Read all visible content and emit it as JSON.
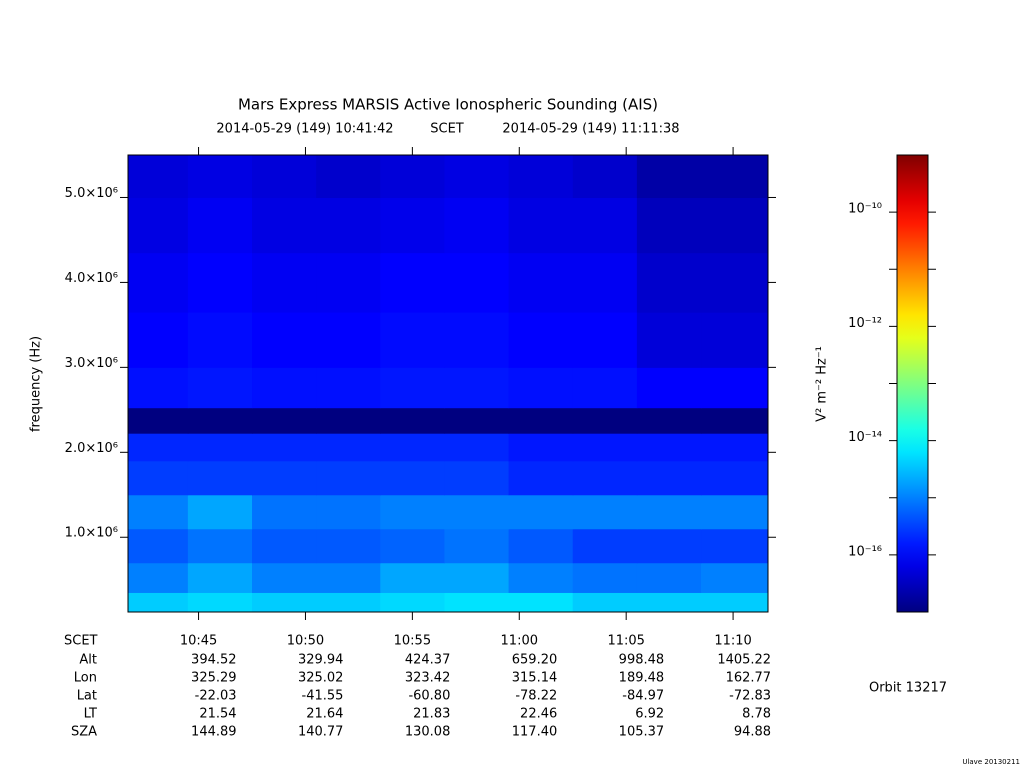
{
  "chart_data": {
    "type": "heatmap",
    "title": "Mars Express MARSIS Active Ionospheric Sounding (AIS)",
    "start_time": "2014-05-29 (149) 10:41:42",
    "time_system": "SCET",
    "end_time": "2014-05-29 (149) 11:11:38",
    "y_label": "frequency (Hz)",
    "colorbar_label": "V² m⁻² Hz⁻¹",
    "orbit": "Orbit 13217",
    "version": "Ulave 20130211",
    "xlim": [
      641.7,
      671.633
    ],
    "xticks": [
      {
        "value": 645,
        "label": "10:45"
      },
      {
        "value": 650,
        "label": "10:50"
      },
      {
        "value": 655,
        "label": "10:55"
      },
      {
        "value": 660,
        "label": "11:00"
      },
      {
        "value": 665,
        "label": "11:05"
      },
      {
        "value": 670,
        "label": "11:10"
      }
    ],
    "ylim": [
      120000,
      5500000
    ],
    "yticks": [
      {
        "value": 1000000,
        "label": "1.0×10⁶"
      },
      {
        "value": 2000000,
        "label": "2.0×10⁶"
      },
      {
        "value": 3000000,
        "label": "3.0×10⁶"
      },
      {
        "value": 4000000,
        "label": "4.0×10⁶"
      },
      {
        "value": 5000000,
        "label": "5.0×10⁶"
      }
    ],
    "zlog": true,
    "colormap": "jet",
    "zlim": [
      1e-17,
      1e-09
    ],
    "zticks": [
      {
        "value": 1e-10,
        "label": "10⁻¹⁰"
      },
      {
        "value": 1e-12,
        "label": "10⁻¹²"
      },
      {
        "value": 1e-14,
        "label": "10⁻¹⁴"
      },
      {
        "value": 1e-16,
        "label": "10⁻¹⁶"
      }
    ],
    "zminorticks": [
      1e-11,
      1e-13,
      1e-15
    ],
    "x": [
      643,
      646,
      649,
      652,
      655,
      658,
      661,
      664,
      667,
      670
    ],
    "y": [
      200000,
      500000,
      900000,
      1300000,
      1700000,
      2100000,
      2350000,
      2700000,
      3300000,
      4000000,
      4700000,
      5300000
    ],
    "z": [
      [
        4e-15,
        5e-15,
        4e-15,
        4e-15,
        5e-15,
        6e-15,
        6e-15,
        4e-15,
        4e-15,
        4e-15
      ],
      [
        1e-15,
        2e-15,
        1e-15,
        1e-15,
        2e-15,
        2e-15,
        1e-15,
        8e-16,
        8e-16,
        1e-15
      ],
      [
        5e-16,
        8e-16,
        5e-16,
        5e-16,
        6e-16,
        8e-16,
        5e-16,
        3e-16,
        3e-16,
        3e-16
      ],
      [
        1e-15,
        2e-15,
        8e-16,
        8e-16,
        1e-15,
        1e-15,
        1e-15,
        1e-15,
        1e-15,
        1e-15
      ],
      [
        3e-16,
        3e-16,
        3e-16,
        3e-16,
        3e-16,
        3e-16,
        2e-16,
        2e-16,
        2e-16,
        2e-16
      ],
      [
        2e-16,
        2e-16,
        2e-16,
        2e-16,
        2e-16,
        2e-16,
        1.5e-16,
        1.5e-16,
        1.5e-16,
        1.5e-16
      ],
      [
        1e-17,
        1e-17,
        1e-17,
        1e-17,
        1e-17,
        1e-17,
        1e-17,
        1e-17,
        1e-17,
        1e-17
      ],
      [
        1.3e-16,
        1.5e-16,
        1.3e-16,
        1.3e-16,
        1.5e-16,
        1.5e-16,
        1.3e-16,
        1.3e-16,
        1e-16,
        1e-16
      ],
      [
        1e-16,
        1.2e-16,
        1e-16,
        1e-16,
        1.2e-16,
        1.2e-16,
        1e-16,
        1e-16,
        5e-17,
        5e-17
      ],
      [
        8e-17,
        1e-16,
        8e-17,
        8e-17,
        1e-16,
        1e-16,
        8e-17,
        8e-17,
        4e-17,
        4e-17
      ],
      [
        6e-17,
        8e-17,
        6e-17,
        6e-17,
        7e-17,
        8e-17,
        6e-17,
        6e-17,
        3e-17,
        3e-17
      ],
      [
        5e-17,
        6e-17,
        5e-17,
        4e-17,
        5e-17,
        6e-17,
        5e-17,
        4e-17,
        2e-17,
        2e-17
      ]
    ],
    "ephemeris": {
      "labels": [
        "SCET",
        "Alt",
        "Lon",
        "Lat",
        "LT",
        "SZA"
      ],
      "rows": [
        [
          "394.52",
          "329.94",
          "424.37",
          "659.20",
          "998.48",
          "1405.22"
        ],
        [
          "325.29",
          "325.02",
          "323.42",
          "315.14",
          "189.48",
          "162.77"
        ],
        [
          "-22.03",
          "-41.55",
          "-60.80",
          "-78.22",
          "-84.97",
          "-72.83"
        ],
        [
          "21.54",
          "21.64",
          "21.83",
          "22.46",
          "6.92",
          "8.78"
        ],
        [
          "144.89",
          "140.77",
          "130.08",
          "117.40",
          "105.37",
          "94.88"
        ]
      ]
    }
  }
}
